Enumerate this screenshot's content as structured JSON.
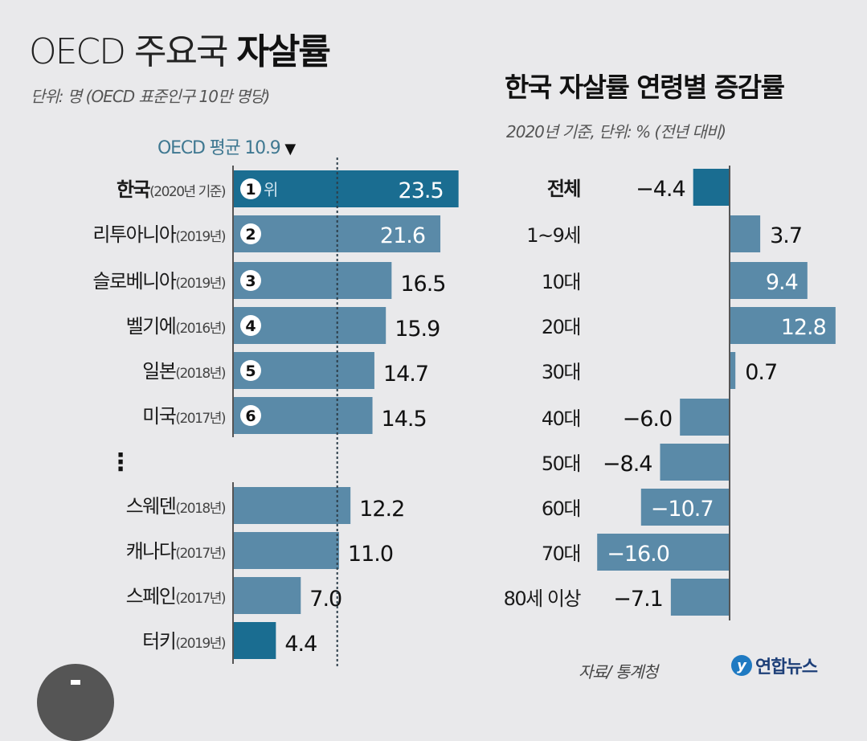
{
  "colors": {
    "background": "#e9e9eb",
    "highlight_bar": "#1a6d91",
    "bar": "#5a8aa8",
    "avg_text": "#3f7891",
    "axis": "#555555"
  },
  "chart_data": [
    {
      "type": "bar",
      "orientation": "horizontal",
      "title": "OECD 주요국 자살률",
      "title_regular": "OECD 주요국 ",
      "title_bold": "자살률",
      "subtitle": "단위: 명 (OECD 표준인구 10만 명당)",
      "reference_line": {
        "label": "OECD 평균 10.9",
        "value": 10.9,
        "marker": "▼"
      },
      "ellipsis": "⋮",
      "categories": [
        {
          "name": "한국",
          "note": "(2020년 기준)",
          "rank": "1",
          "rank_suffix": "위",
          "value": 23.5,
          "highlight": true,
          "label_inside": true
        },
        {
          "name": "리투아니아",
          "note": "(2019년)",
          "rank": "2",
          "value": 21.6,
          "highlight": false,
          "label_inside": true
        },
        {
          "name": "슬로베니아",
          "note": "(2019년)",
          "rank": "3",
          "value": 16.5,
          "highlight": false,
          "label_inside": false
        },
        {
          "name": "벨기에",
          "note": "(2016년)",
          "rank": "4",
          "value": 15.9,
          "highlight": false,
          "label_inside": false
        },
        {
          "name": "일본",
          "note": "(2018년)",
          "rank": "5",
          "value": 14.7,
          "highlight": false,
          "label_inside": false
        },
        {
          "name": "미국",
          "note": "(2017년)",
          "rank": "6",
          "value": 14.5,
          "highlight": false,
          "label_inside": false
        },
        {
          "name": "스웨덴",
          "note": "(2018년)",
          "rank": "",
          "value": 12.2,
          "highlight": false,
          "label_inside": false
        },
        {
          "name": "캐나다",
          "note": "(2017년)",
          "rank": "",
          "value": 11.0,
          "highlight": false,
          "label_inside": false
        },
        {
          "name": "스페인",
          "note": "(2017년)",
          "rank": "",
          "value": 7.0,
          "highlight": false,
          "label_inside": false
        },
        {
          "name": "터키",
          "note": "(2019년)",
          "rank": "",
          "value": 4.4,
          "highlight": true,
          "label_inside": false
        }
      ],
      "value_labels": [
        "23.5",
        "21.6",
        "16.5",
        "15.9",
        "14.7",
        "14.5",
        "12.2",
        "11.0",
        "7.0",
        "4.4"
      ],
      "xlim": [
        0,
        24
      ]
    },
    {
      "type": "bar",
      "orientation": "horizontal-diverging",
      "title": "한국 자살률 연령별 증감률",
      "subtitle": "2020년 기준, 단위: % (전년 대비)",
      "categories": [
        "전체",
        "1~9세",
        "10대",
        "20대",
        "30대",
        "40대",
        "50대",
        "60대",
        "70대",
        "80세 이상"
      ],
      "values": [
        -4.4,
        3.7,
        9.4,
        12.8,
        0.7,
        -6.0,
        -8.4,
        -10.7,
        -16.0,
        -7.1
      ],
      "value_labels": [
        "−4.4",
        "3.7",
        "9.4",
        "12.8",
        "0.7",
        "−6.0",
        "−8.4",
        "−10.7",
        "−16.0",
        "−7.1"
      ],
      "highlight_index": 0,
      "label_inside": [
        false,
        false,
        true,
        true,
        false,
        false,
        false,
        true,
        true,
        false
      ],
      "xlim": [
        -16,
        13
      ]
    }
  ],
  "footer": {
    "source": "자료/ 통계청",
    "logo_mark": "y",
    "logo_text": "연합뉴스"
  }
}
